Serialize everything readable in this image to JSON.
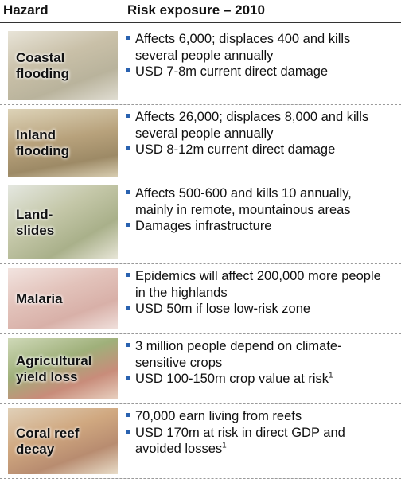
{
  "header": {
    "hazard": "Hazard",
    "risk": "Risk exposure – 2010"
  },
  "rows": [
    {
      "hazard": [
        "Coastal",
        "flooding"
      ],
      "bullets": [
        {
          "text": "Affects 6,000; displaces 400 and kills several people annually"
        },
        {
          "text": "USD 7-8m current  direct damage"
        }
      ]
    },
    {
      "hazard": [
        "Inland",
        "flooding"
      ],
      "bullets": [
        {
          "text": "Affects 26,000; displaces 8,000 and kills several people annually"
        },
        {
          "text": "USD 8-12m current direct damage"
        }
      ]
    },
    {
      "hazard": [
        "Land-",
        "slides"
      ],
      "bullets": [
        {
          "text": "Affects 500-600 and kills 10 annually, mainly in remote, mountainous areas"
        },
        {
          "text": "Damages infrastructure"
        }
      ]
    },
    {
      "hazard": [
        "Malaria"
      ],
      "bullets": [
        {
          "text": "Epidemics will affect 200,000 more people in the highlands"
        },
        {
          "text": "USD 50m if lose low-risk zone"
        }
      ]
    },
    {
      "hazard": [
        "Agricultural",
        "yield loss"
      ],
      "bullets": [
        {
          "text": "3 million people depend on climate-sensitive crops"
        },
        {
          "text": "USD 100-150m crop value at risk",
          "note": "1"
        }
      ]
    },
    {
      "hazard": [
        "Coral reef",
        "decay"
      ],
      "bullets": [
        {
          "text": "70,000 earn living from reefs"
        },
        {
          "text": "USD 170m at risk in direct GDP and avoided losses",
          "note": "1"
        }
      ]
    }
  ]
}
